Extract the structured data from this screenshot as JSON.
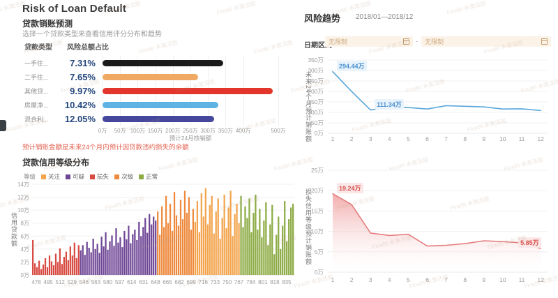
{
  "page": {
    "title": "Risk of Loan Default"
  },
  "watermark": {
    "text": "FineBI 未激活版"
  },
  "left": {
    "forecast": {
      "title": "贷款销账预测",
      "subtitle": "选择一个贷款类型来查看信用评分分布和趋势",
      "columns": {
        "type": "贷款类型",
        "risk_share": "风险总额占比"
      },
      "note": "预计销账金额是未来24个月内预计因贷款违约损失的余额"
    },
    "distribution": {
      "title": "贷款信用等级分布"
    }
  },
  "right": {
    "title": "风险趋势",
    "period": "2018/01—2018/12",
    "date_label": "日期区间",
    "date_from_placeholder": "无限制",
    "date_to_placeholder": "无限制",
    "separator": "-"
  },
  "chart_data": [
    {
      "id": "loan-type-writeoff-bars",
      "type": "bar",
      "orientation": "horizontal",
      "categories": [
        "一手住...",
        "二手住...",
        "其他贷...",
        "房屋净...",
        "混合利..."
      ],
      "risk_share_labels": [
        "7.31%",
        "7.65%",
        "9.97%",
        "10.42%",
        "12.05%"
      ],
      "values": [
        344,
        271,
        484,
        330,
        318
      ],
      "unit": "万",
      "colors": [
        "#1b1b1b",
        "#efa963",
        "#e2352b",
        "#5fb3e3",
        "#45479d"
      ],
      "xlabel": "预计24月核销额",
      "xlim": [
        0,
        500
      ],
      "xtick_labels": [
        "0万",
        "50万",
        "100万",
        "150万",
        "200万",
        "250万",
        "300万",
        "350万",
        "400万",
        "500万"
      ],
      "xtick_values": [
        0,
        50,
        100,
        150,
        200,
        250,
        300,
        350,
        400,
        500
      ]
    },
    {
      "id": "credit-grade-distribution-histogram",
      "type": "bar",
      "subtype": "histogram",
      "legend_title": "等级",
      "legend": [
        {
          "label": "关注",
          "color": "#f3a44c"
        },
        {
          "label": "可疑",
          "color": "#6f4696"
        },
        {
          "label": "损失",
          "color": "#d84b42"
        },
        {
          "label": "次级",
          "color": "#ee8a3e"
        },
        {
          "label": "正常",
          "color": "#8cab44"
        }
      ],
      "ylabel": "信用贷款额",
      "ylim": [
        0,
        14
      ],
      "ytick_labels": [
        "0万",
        "2万",
        "4万",
        "6万",
        "8万",
        "10万",
        "12万",
        "14万"
      ],
      "x_range": [
        472,
        846
      ],
      "xticks": [
        478,
        495,
        512,
        529,
        546,
        563,
        580,
        597,
        614,
        631,
        648,
        665,
        682,
        699,
        716,
        733,
        750,
        767,
        784,
        801,
        818,
        835
      ],
      "segments": [
        {
          "grade": "损失",
          "color": "#d84b42",
          "values": [
            5.4,
            1.8,
            1.2,
            2.2,
            0.9,
            1.6,
            2.6,
            1.2,
            3.0,
            2.1,
            1.5,
            3.3,
            2.0,
            4.1,
            1.7,
            2.8,
            3.6,
            2.3,
            4.4,
            3.0,
            5.0,
            2.6,
            4.6
          ]
        },
        {
          "grade": "可疑",
          "color": "#6f4696",
          "values": [
            3.8,
            4.6,
            3.1,
            5.1,
            4.2,
            3.5,
            5.6,
            4.0,
            4.8,
            3.4,
            5.9,
            4.4,
            6.6,
            3.9,
            5.2,
            6.1,
            4.5,
            7.2,
            5.0,
            5.8,
            4.3,
            6.8,
            5.5,
            7.6,
            4.9,
            6.3,
            7.0,
            5.4,
            8.2,
            6.0,
            7.4,
            8.8,
            6.5,
            9.4,
            7.8,
            9.0,
            8.4
          ]
        },
        {
          "grade": "次级",
          "color": "#ee8a3e",
          "values": [
            9.8,
            6.2,
            10.6,
            7.4,
            12.2,
            8.0,
            11.0,
            6.8,
            12.8,
            9.2,
            7.6,
            11.6,
            8.6,
            13.0,
            9.6,
            12.0,
            7.0,
            10.2
          ]
        },
        {
          "grade": "关注",
          "color": "#f3a44c",
          "values": [
            8.2,
            11.4,
            6.6,
            12.6,
            9.0,
            13.4,
            7.8,
            10.8,
            12.2,
            6.4,
            9.8,
            11.8,
            5.6,
            8.8,
            12.4,
            7.2,
            10.4,
            13.0,
            6.0,
            9.4,
            11.0,
            8.0
          ]
        },
        {
          "grade": "正常",
          "color": "#8cab44",
          "values": [
            12.2,
            7.4,
            10.6,
            8.8,
            11.8,
            6.6,
            9.6,
            12.4,
            7.0,
            10.2,
            5.8,
            8.4,
            11.2,
            4.6,
            7.8,
            10.8,
            3.2,
            6.2,
            9.0,
            4.0,
            7.6,
            11.4,
            5.2,
            8.6,
            10.4,
            11.0
          ]
        }
      ]
    },
    {
      "id": "future-24m-writeoff-trend",
      "type": "line",
      "color": "#58a6db",
      "ylabel": "未来24个月预计销账额",
      "ylim": [
        0,
        350
      ],
      "ytick_labels": [
        "0万",
        "50万",
        "100万",
        "150万",
        "200万",
        "250万",
        "300万",
        "350万"
      ],
      "x": [
        1,
        2,
        3,
        4,
        5,
        6,
        7,
        8,
        9,
        10,
        11,
        12
      ],
      "values": [
        294.44,
        200,
        111.34,
        124,
        123,
        116,
        132,
        129,
        126,
        116,
        117,
        109
      ],
      "point_labels": [
        {
          "index": 0,
          "text": "294.44万"
        },
        {
          "index": 2,
          "text": "111.34万"
        }
      ]
    },
    {
      "id": "loss-grade-writeoff-trend",
      "type": "area",
      "color": "#e57d7d",
      "fill_top": "#ef9d9d",
      "ylabel": "损失信用等级预计销账额",
      "ylim": [
        0,
        25
      ],
      "ytick_labels": [
        "0万",
        "5万",
        "10万",
        "15万",
        "20万",
        "25万"
      ],
      "x": [
        1,
        2,
        3,
        4,
        5,
        6,
        7,
        8,
        9,
        10,
        11,
        12
      ],
      "values": [
        19.24,
        16.6,
        9.6,
        9.0,
        9.3,
        6.4,
        6.6,
        7.0,
        7.7,
        7.5,
        7.2,
        5.85
      ],
      "point_labels": [
        {
          "index": 0,
          "text": "19.24万"
        },
        {
          "index": 11,
          "text": "5.85万"
        }
      ]
    }
  ]
}
